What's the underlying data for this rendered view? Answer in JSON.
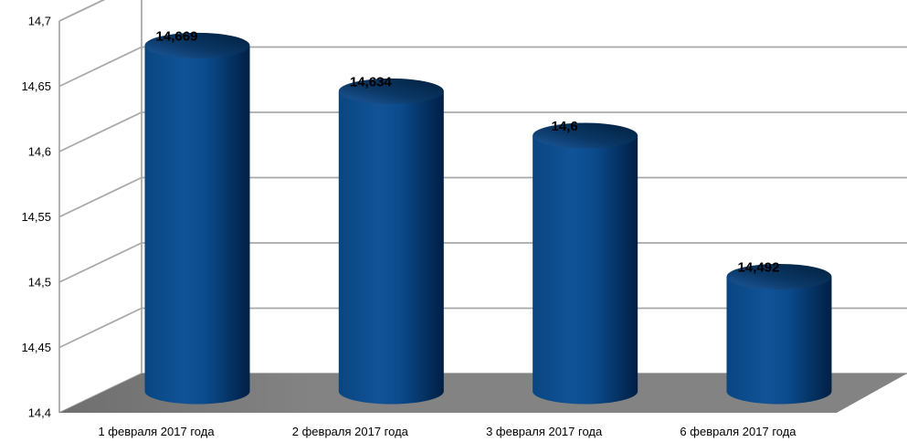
{
  "chart_data": {
    "type": "bar",
    "subtype": "3d-cylinder",
    "title": "",
    "categories": [
      "1 февраля 2017 года",
      "2 февраля 2017 года",
      "3 февраля 2017 года",
      "6 февраля 2017 года"
    ],
    "values": [
      14.669,
      14.634,
      14.6,
      14.492
    ],
    "data_labels": [
      "14,669",
      "14,634",
      "14,6",
      "14,492"
    ],
    "xlabel": "",
    "ylabel": "",
    "ylim": [
      14.4,
      14.7
    ],
    "y_tick_step": 0.05,
    "y_tick_labels": [
      "14,4",
      "14,45",
      "14,5",
      "14,55",
      "14,6",
      "14,65",
      "14,7"
    ],
    "grid": true,
    "legend": "none",
    "decimal_separator": ",",
    "colors": {
      "background": "#ffffff",
      "gridline": "#a9a9a9",
      "wall_edge": "#a9a9a9",
      "floor_dark": "#6f6f6f",
      "floor_light": "#838383",
      "bar_body_left": "#0a4580",
      "bar_body_mid": "#115397",
      "bar_body_shade": "#053263",
      "bar_body_right": "#011f44",
      "bar_top_dark": "#01203e",
      "bar_top_mid": "#0b3765",
      "bar_top_light": "#1e5b9e",
      "label_text": "#000000"
    }
  }
}
